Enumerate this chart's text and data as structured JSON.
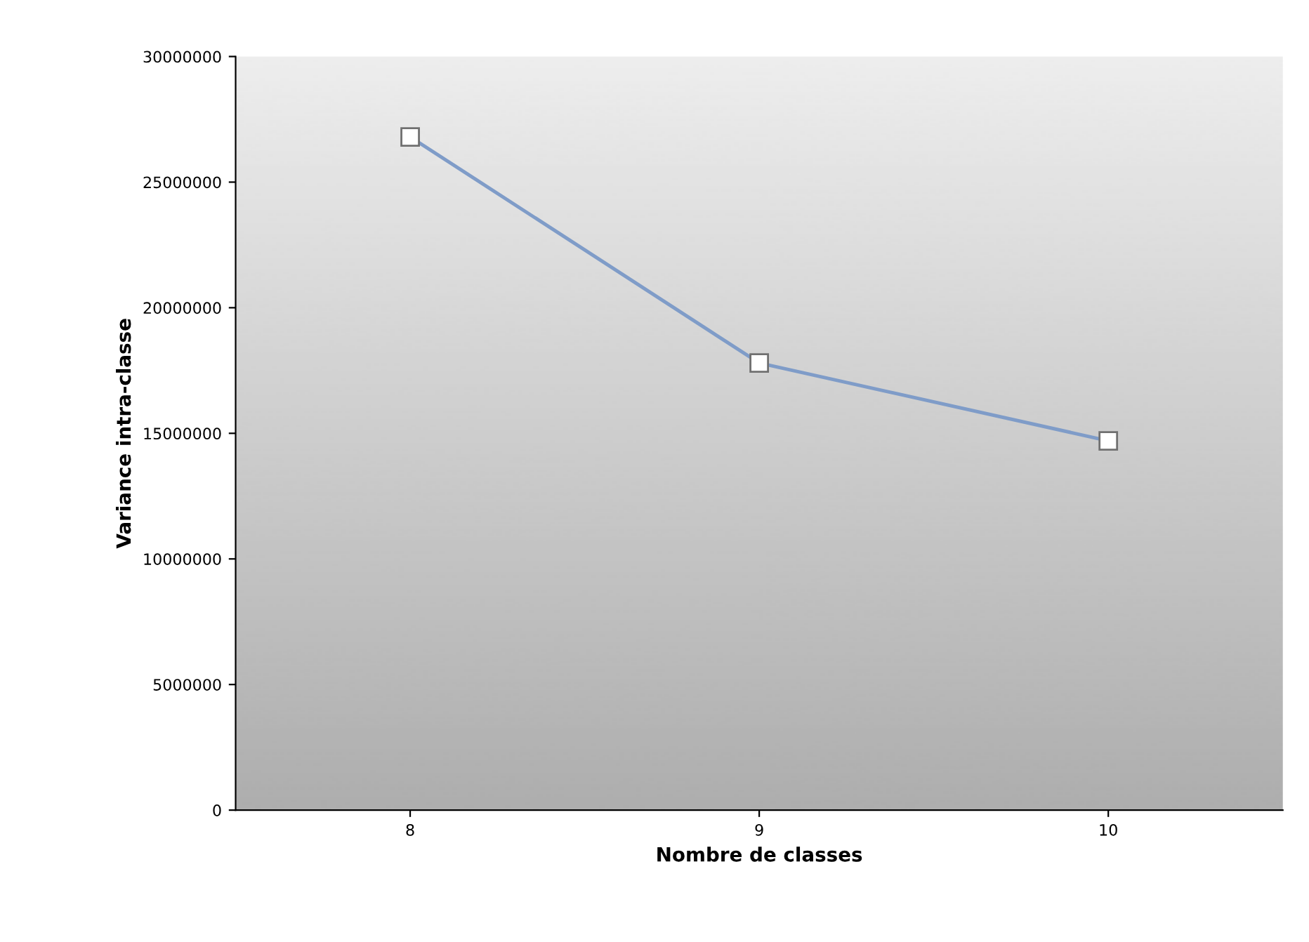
{
  "chart_data": {
    "type": "line",
    "xlabel": "Nombre de classes",
    "ylabel": "Variance intra-classe",
    "categories": [
      "8",
      "9",
      "10"
    ],
    "series": [
      {
        "color": "#7f9cc8",
        "values": [
          26800000,
          17800000,
          14700000
        ]
      }
    ],
    "ylim": [
      0,
      30000000
    ],
    "yticks": [
      0,
      5000000,
      10000000,
      15000000,
      20000000,
      25000000,
      30000000
    ],
    "marker": "square",
    "grid": false,
    "legend": false
  }
}
